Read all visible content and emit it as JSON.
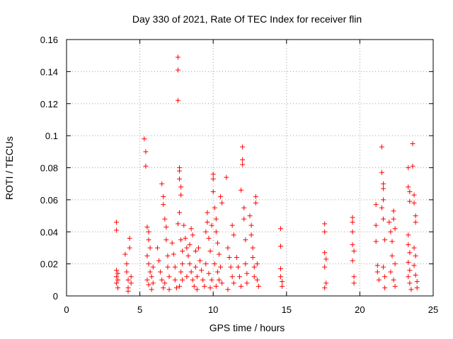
{
  "chart_data": {
    "type": "scatter",
    "title": "Day 330 of 2021, Rate Of TEC Index for receiver flin",
    "xlabel": "GPS time / hours",
    "ylabel": "ROTI / TECUs",
    "xlim": [
      0,
      25
    ],
    "ylim": [
      0,
      0.16
    ],
    "x_ticks": [
      "0",
      "5",
      "10",
      "15",
      "20",
      "25"
    ],
    "y_ticks": [
      "0",
      "0.02",
      "0.04",
      "0.06",
      "0.08",
      "0.1",
      "0.12",
      "0.14",
      "0.16"
    ],
    "grid": true,
    "marker": "plus",
    "marker_color": "#ff0000",
    "series": [
      {
        "points": [
          [
            3.4,
            0.046
          ],
          [
            3.4,
            0.041
          ],
          [
            3.4,
            0.016
          ],
          [
            3.4,
            0.012
          ],
          [
            3.4,
            0.008
          ],
          [
            3.5,
            0.005
          ],
          [
            3.5,
            0.014
          ],
          [
            3.5,
            0.01
          ],
          [
            4.0,
            0.026
          ],
          [
            4.1,
            0.02
          ],
          [
            4.1,
            0.015
          ],
          [
            4.2,
            0.01
          ],
          [
            4.2,
            0.005
          ],
          [
            4.3,
            0.036
          ],
          [
            4.3,
            0.03
          ],
          [
            4.4,
            0.012
          ],
          [
            4.4,
            0.008
          ],
          [
            4.2,
            0.003
          ],
          [
            5.3,
            0.098
          ],
          [
            5.4,
            0.09
          ],
          [
            5.4,
            0.081
          ],
          [
            5.5,
            0.043
          ],
          [
            5.6,
            0.04
          ],
          [
            5.6,
            0.035
          ],
          [
            5.7,
            0.03
          ],
          [
            5.5,
            0.025
          ],
          [
            5.6,
            0.02
          ],
          [
            5.7,
            0.015
          ],
          [
            5.8,
            0.012
          ],
          [
            5.5,
            0.01
          ],
          [
            5.6,
            0.007
          ],
          [
            5.8,
            0.004
          ],
          [
            5.9,
            0.018
          ],
          [
            5.9,
            0.008
          ],
          [
            6.2,
            0.03
          ],
          [
            6.3,
            0.022
          ],
          [
            6.4,
            0.015
          ],
          [
            6.5,
            0.01
          ],
          [
            6.6,
            0.005
          ],
          [
            6.5,
            0.07
          ],
          [
            6.6,
            0.062
          ],
          [
            6.6,
            0.057
          ],
          [
            6.7,
            0.048
          ],
          [
            6.8,
            0.043
          ],
          [
            6.8,
            0.035
          ],
          [
            6.9,
            0.025
          ],
          [
            6.9,
            0.018
          ],
          [
            7.0,
            0.012
          ],
          [
            6.7,
            0.008
          ],
          [
            7.0,
            0.004
          ],
          [
            7.2,
            0.033
          ],
          [
            7.3,
            0.026
          ],
          [
            7.4,
            0.018
          ],
          [
            7.4,
            0.01
          ],
          [
            7.5,
            0.005
          ],
          [
            7.6,
            0.149
          ],
          [
            7.6,
            0.141
          ],
          [
            7.6,
            0.122
          ],
          [
            7.7,
            0.08
          ],
          [
            7.7,
            0.078
          ],
          [
            7.7,
            0.073
          ],
          [
            7.8,
            0.068
          ],
          [
            7.8,
            0.063
          ],
          [
            7.7,
            0.052
          ],
          [
            7.6,
            0.045
          ],
          [
            7.8,
            0.035
          ],
          [
            7.9,
            0.028
          ],
          [
            7.9,
            0.02
          ],
          [
            7.8,
            0.015
          ],
          [
            7.9,
            0.01
          ],
          [
            7.7,
            0.006
          ],
          [
            8.0,
            0.044
          ],
          [
            8.1,
            0.036
          ],
          [
            8.2,
            0.03
          ],
          [
            8.3,
            0.025
          ],
          [
            8.4,
            0.02
          ],
          [
            8.5,
            0.015
          ],
          [
            8.6,
            0.01
          ],
          [
            8.7,
            0.006
          ],
          [
            8.2,
            0.012
          ],
          [
            8.4,
            0.032
          ],
          [
            8.6,
            0.038
          ],
          [
            8.8,
            0.028
          ],
          [
            8.8,
            0.018
          ],
          [
            8.9,
            0.012
          ],
          [
            8.9,
            0.004
          ],
          [
            8.5,
            0.042
          ],
          [
            9.0,
            0.03
          ],
          [
            9.1,
            0.022
          ],
          [
            9.2,
            0.016
          ],
          [
            9.3,
            0.01
          ],
          [
            9.4,
            0.006
          ],
          [
            9.5,
            0.04
          ],
          [
            9.6,
            0.052
          ],
          [
            9.6,
            0.046
          ],
          [
            9.7,
            0.036
          ],
          [
            9.8,
            0.028
          ],
          [
            9.5,
            0.02
          ],
          [
            9.7,
            0.014
          ],
          [
            9.9,
            0.01
          ],
          [
            9.8,
            0.005
          ],
          [
            9.9,
            0.044
          ],
          [
            10.0,
            0.076
          ],
          [
            10.0,
            0.073
          ],
          [
            10.0,
            0.065
          ],
          [
            10.1,
            0.055
          ],
          [
            10.2,
            0.048
          ],
          [
            10.2,
            0.04
          ],
          [
            10.3,
            0.033
          ],
          [
            10.4,
            0.026
          ],
          [
            10.1,
            0.02
          ],
          [
            10.3,
            0.015
          ],
          [
            10.4,
            0.01
          ],
          [
            10.2,
            0.006
          ],
          [
            10.5,
            0.062
          ],
          [
            10.6,
            0.058
          ],
          [
            10.5,
            0.018
          ],
          [
            10.6,
            0.008
          ],
          [
            10.9,
            0.074
          ],
          [
            11.0,
            0.03
          ],
          [
            11.1,
            0.024
          ],
          [
            11.2,
            0.018
          ],
          [
            11.3,
            0.012
          ],
          [
            11.4,
            0.008
          ],
          [
            11.0,
            0.004
          ],
          [
            11.3,
            0.044
          ],
          [
            11.4,
            0.038
          ],
          [
            11.6,
            0.024
          ],
          [
            11.7,
            0.018
          ],
          [
            11.8,
            0.012
          ],
          [
            11.9,
            0.006
          ],
          [
            11.9,
            0.066
          ],
          [
            12.0,
            0.093
          ],
          [
            12.0,
            0.085
          ],
          [
            12.0,
            0.082
          ],
          [
            12.1,
            0.055
          ],
          [
            12.1,
            0.048
          ],
          [
            12.2,
            0.035
          ],
          [
            12.2,
            0.02
          ],
          [
            12.3,
            0.014
          ],
          [
            12.3,
            0.008
          ],
          [
            12.5,
            0.05
          ],
          [
            12.6,
            0.044
          ],
          [
            12.6,
            0.038
          ],
          [
            12.7,
            0.03
          ],
          [
            12.7,
            0.024
          ],
          [
            12.8,
            0.018
          ],
          [
            12.8,
            0.012
          ],
          [
            12.9,
            0.058
          ],
          [
            12.9,
            0.062
          ],
          [
            13.0,
            0.02
          ],
          [
            13.0,
            0.01
          ],
          [
            13.1,
            0.006
          ],
          [
            14.6,
            0.042
          ],
          [
            14.6,
            0.031
          ],
          [
            14.6,
            0.017
          ],
          [
            14.6,
            0.012
          ],
          [
            14.7,
            0.009
          ],
          [
            14.7,
            0.006
          ],
          [
            17.6,
            0.045
          ],
          [
            17.6,
            0.04
          ],
          [
            17.6,
            0.027
          ],
          [
            17.7,
            0.023
          ],
          [
            17.6,
            0.018
          ],
          [
            17.7,
            0.008
          ],
          [
            17.6,
            0.005
          ],
          [
            19.5,
            0.049
          ],
          [
            19.5,
            0.046
          ],
          [
            19.5,
            0.04
          ],
          [
            19.5,
            0.032
          ],
          [
            19.6,
            0.028
          ],
          [
            19.5,
            0.022
          ],
          [
            19.6,
            0.012
          ],
          [
            19.6,
            0.008
          ],
          [
            21.1,
            0.057
          ],
          [
            21.1,
            0.044
          ],
          [
            21.1,
            0.034
          ],
          [
            21.2,
            0.019
          ],
          [
            21.2,
            0.015
          ],
          [
            21.3,
            0.01
          ],
          [
            21.5,
            0.093
          ],
          [
            21.5,
            0.077
          ],
          [
            21.6,
            0.07
          ],
          [
            21.6,
            0.067
          ],
          [
            21.6,
            0.06
          ],
          [
            21.5,
            0.055
          ],
          [
            21.6,
            0.048
          ],
          [
            21.7,
            0.035
          ],
          [
            21.6,
            0.018
          ],
          [
            21.7,
            0.012
          ],
          [
            21.7,
            0.005
          ],
          [
            22.0,
            0.046
          ],
          [
            22.1,
            0.04
          ],
          [
            22.2,
            0.034
          ],
          [
            22.2,
            0.025
          ],
          [
            22.3,
            0.053
          ],
          [
            22.3,
            0.048
          ],
          [
            22.4,
            0.042
          ],
          [
            22.4,
            0.02
          ],
          [
            22.1,
            0.015
          ],
          [
            22.3,
            0.01
          ],
          [
            22.4,
            0.006
          ],
          [
            23.3,
            0.08
          ],
          [
            23.3,
            0.068
          ],
          [
            23.4,
            0.065
          ],
          [
            23.4,
            0.059
          ],
          [
            23.3,
            0.038
          ],
          [
            23.3,
            0.032
          ],
          [
            23.4,
            0.027
          ],
          [
            23.3,
            0.021
          ],
          [
            23.4,
            0.016
          ],
          [
            23.3,
            0.012
          ],
          [
            23.4,
            0.008
          ],
          [
            23.5,
            0.004
          ],
          [
            23.6,
            0.095
          ],
          [
            23.6,
            0.081
          ],
          [
            23.7,
            0.063
          ],
          [
            23.7,
            0.058
          ],
          [
            23.8,
            0.05
          ],
          [
            23.8,
            0.046
          ],
          [
            23.7,
            0.03
          ],
          [
            23.8,
            0.025
          ],
          [
            23.7,
            0.019
          ],
          [
            23.8,
            0.013
          ],
          [
            23.9,
            0.009
          ],
          [
            23.9,
            0.005
          ]
        ]
      }
    ]
  }
}
